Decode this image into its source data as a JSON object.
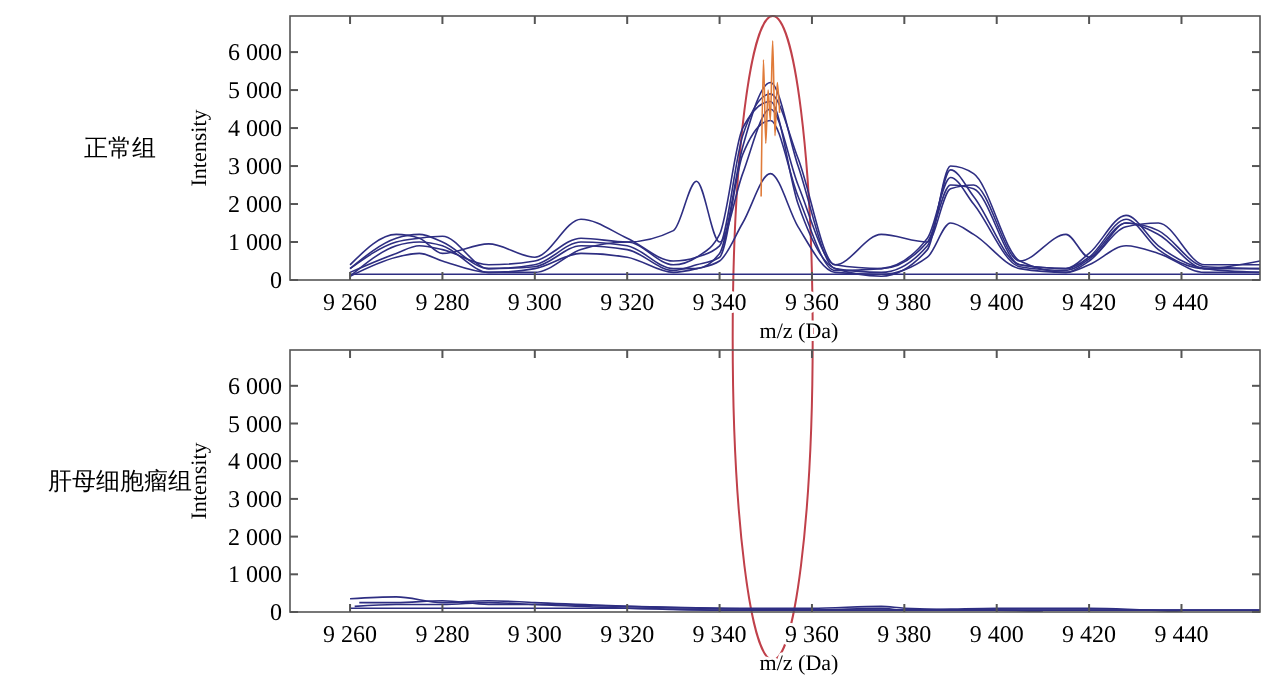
{
  "chart_data": [
    {
      "type": "line",
      "title": "正常组",
      "xlabel": "m/z (Da)",
      "ylabel": "Intensity",
      "xlim": [
        9247,
        9457
      ],
      "ylim": [
        0,
        6950
      ],
      "xticks": [
        {
          "value": 9260,
          "label": "9 260"
        },
        {
          "value": 9280,
          "label": "9 280"
        },
        {
          "value": 9300,
          "label": "9 300"
        },
        {
          "value": 9320,
          "label": "9 320"
        },
        {
          "value": 9340,
          "label": "9 340"
        },
        {
          "value": 9360,
          "label": "9 360"
        },
        {
          "value": 9380,
          "label": "9 380"
        },
        {
          "value": 9400,
          "label": "9 400"
        },
        {
          "value": 9420,
          "label": "9 420"
        },
        {
          "value": 9440,
          "label": "9 440"
        }
      ],
      "yticks": [
        0,
        {
          "value": 1000,
          "label": "1 000"
        },
        {
          "value": 2000,
          "label": "2 000"
        },
        {
          "value": 3000,
          "label": "3 000"
        },
        {
          "value": 4000,
          "label": "4 000"
        },
        {
          "value": 5000,
          "label": "5 000"
        },
        {
          "value": 6000,
          "label": "6 000"
        }
      ],
      "grid": false,
      "x": [
        9260,
        9270,
        9275,
        9280,
        9290,
        9300,
        9310,
        9320,
        9330,
        9335,
        9340,
        9345,
        9351,
        9357,
        9365,
        9375,
        9385,
        9390,
        9395,
        9405,
        9415,
        9420,
        9428,
        9435,
        9445,
        9457
      ],
      "series": [
        {
          "color": "#2e2e82",
          "values": [
            300,
            1100,
            1200,
            1000,
            300,
            400,
            1000,
            900,
            300,
            300,
            700,
            3500,
            5200,
            3000,
            300,
            200,
            900,
            2900,
            2200,
            400,
            300,
            600,
            1600,
            800,
            300,
            300
          ]
        },
        {
          "color": "#2e2e82",
          "values": [
            100,
            900,
            1000,
            900,
            200,
            200,
            800,
            1000,
            400,
            600,
            1200,
            4000,
            4700,
            2000,
            300,
            100,
            800,
            3000,
            2800,
            500,
            200,
            500,
            1400,
            1500,
            400,
            400
          ]
        },
        {
          "color": "#2e2e82",
          "values": [
            200,
            700,
            900,
            800,
            400,
            500,
            1100,
            1000,
            1300,
            2600,
            1000,
            2800,
            4500,
            2500,
            400,
            300,
            1000,
            2500,
            2400,
            400,
            300,
            700,
            1700,
            900,
            300,
            200
          ]
        },
        {
          "color": "#2e2e82",
          "values": [
            400,
            1200,
            1100,
            700,
            950,
            600,
            1600,
            1100,
            500,
            600,
            900,
            3800,
            4900,
            3200,
            400,
            1200,
            1000,
            2400,
            2500,
            500,
            1200,
            600,
            1500,
            1200,
            300,
            500
          ]
        },
        {
          "color": "#2e2e82",
          "values": [
            100,
            600,
            700,
            500,
            200,
            300,
            700,
            600,
            200,
            300,
            500,
            1500,
            2800,
            1400,
            200,
            150,
            600,
            1500,
            1200,
            300,
            200,
            400,
            900,
            700,
            200,
            200
          ]
        },
        {
          "color": "#2e2e82",
          "values": [
            150,
            150,
            150,
            150,
            150,
            150,
            150,
            150,
            150,
            150,
            150,
            150,
            150,
            150,
            150,
            150,
            150,
            150,
            150,
            150,
            150,
            150,
            150,
            150,
            150,
            150
          ]
        },
        {
          "color": "#2e2e82",
          "values": [
            300,
            1000,
            1100,
            1150,
            300,
            350,
            900,
            800,
            250,
            400,
            600,
            3300,
            4200,
            2200,
            250,
            300,
            1100,
            2700,
            2000,
            350,
            250,
            550,
            1500,
            1300,
            350,
            300
          ]
        },
        {
          "color": "#e07b39",
          "x": [
            9349,
            9349.5,
            9350,
            9350.5,
            9351,
            9351.5,
            9352,
            9352.5,
            9353
          ],
          "values": [
            2200,
            5800,
            3600,
            5000,
            4200,
            6300,
            3800,
            5200,
            4400
          ]
        }
      ]
    },
    {
      "type": "line",
      "title": "肝母细胞瘤组",
      "xlabel": "m/z (Da)",
      "ylabel": "Intensity",
      "xlim": [
        9247,
        9457
      ],
      "ylim": [
        0,
        6950
      ],
      "xticks": [
        {
          "value": 9260,
          "label": "9 260"
        },
        {
          "value": 9280,
          "label": "9 280"
        },
        {
          "value": 9300,
          "label": "9 300"
        },
        {
          "value": 9320,
          "label": "9 320"
        },
        {
          "value": 9340,
          "label": "9 340"
        },
        {
          "value": 9360,
          "label": "9 360"
        },
        {
          "value": 9380,
          "label": "9 380"
        },
        {
          "value": 9400,
          "label": "9 400"
        },
        {
          "value": 9420,
          "label": "9 420"
        },
        {
          "value": 9440,
          "label": "9 440"
        }
      ],
      "yticks": [
        0,
        {
          "value": 1000,
          "label": "1 000"
        },
        {
          "value": 2000,
          "label": "2 000"
        },
        {
          "value": 3000,
          "label": "3 000"
        },
        {
          "value": 4000,
          "label": "4 000"
        },
        {
          "value": 5000,
          "label": "5 000"
        },
        {
          "value": 6000,
          "label": "6 000"
        }
      ],
      "grid": false,
      "x": [
        9260,
        9270,
        9280,
        9290,
        9300,
        9320,
        9340,
        9360,
        9375,
        9380,
        9400,
        9420,
        9440,
        9457
      ],
      "series": [
        {
          "color": "#2e2e82",
          "values": [
            350,
            400,
            250,
            300,
            250,
            150,
            100,
            100,
            150,
            100,
            50,
            50,
            50,
            50
          ]
        },
        {
          "color": "#2e2e82",
          "x": [
            9262,
            9270,
            9280,
            9290,
            9300,
            9320,
            9340,
            9360,
            9375,
            9380,
            9400,
            9420,
            9440
          ],
          "values": [
            250,
            250,
            300,
            200,
            200,
            150,
            100,
            50,
            100,
            50,
            100,
            100,
            0
          ]
        },
        {
          "color": "#2e2e82",
          "x": [
            9261,
            9270,
            9280,
            9290,
            9300,
            9320,
            9340,
            9360,
            9375,
            9380,
            9400,
            9410
          ],
          "values": [
            150,
            200,
            200,
            250,
            200,
            100,
            50,
            50,
            50,
            50,
            50,
            0
          ]
        },
        {
          "color": "#2e2e82",
          "values": [
            100,
            100,
            100,
            100,
            100,
            100,
            50,
            50,
            50,
            50,
            50,
            50,
            50,
            50
          ]
        }
      ]
    }
  ]
}
